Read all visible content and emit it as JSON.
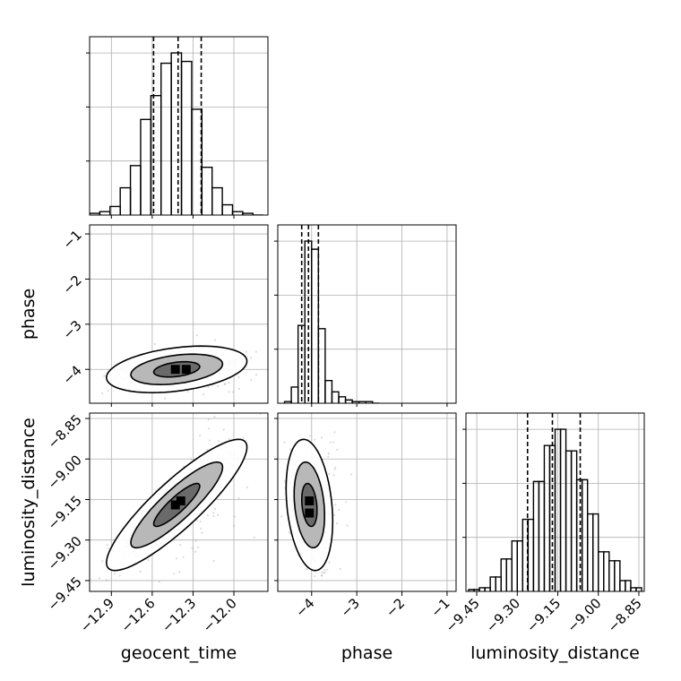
{
  "chart_data": {
    "type": "corner",
    "parameters": [
      "geocent_time",
      "phase",
      "luminosity_distance"
    ],
    "axis_labels": {
      "geocent_time": "geocent_time",
      "phase": "phase",
      "luminosity_distance": "luminosity_distance"
    },
    "tick_labels": {
      "geocent_time": [
        "−12.9",
        "−12.6",
        "−12.3",
        "−12.0"
      ],
      "phase": [
        "−4",
        "−3",
        "−2",
        "−1"
      ],
      "luminosity_distance": [
        "−9.45",
        "−9.30",
        "−9.15",
        "−9.00",
        "−8.85"
      ]
    },
    "ranges": {
      "geocent_time": [
        -13.06,
        -11.75
      ],
      "phase": [
        -4.75,
        -0.8
      ],
      "luminosity_distance": [
        -9.49,
        -8.83
      ]
    },
    "grid": true,
    "histograms": {
      "geocent_time": {
        "quantiles": [
          -12.59,
          -12.41,
          -12.24
        ],
        "bin_edges": [
          -13.06,
          -12.985,
          -12.91,
          -12.835,
          -12.76,
          -12.685,
          -12.61,
          -12.535,
          -12.46,
          -12.385,
          -12.31,
          -12.235,
          -12.16,
          -12.085,
          -12.01,
          -11.935,
          -11.86,
          -11.785
        ],
        "counts": [
          1,
          2,
          5,
          16,
          29,
          56,
          70,
          89,
          95,
          90,
          62,
          28,
          16,
          6,
          2,
          1,
          0
        ]
      },
      "phase": {
        "quantiles": [
          -4.22,
          -4.07,
          -3.85
        ],
        "bin_edges": [
          -4.6,
          -4.45,
          -4.3,
          -4.15,
          -4.0,
          -3.85,
          -3.7,
          -3.55,
          -3.4,
          -3.25,
          -3.1,
          -2.95,
          -2.8,
          -2.65,
          -2.5
        ],
        "counts": [
          1,
          10,
          48,
          100,
          95,
          46,
          14,
          7,
          4,
          2,
          1,
          1,
          1,
          0
        ]
      },
      "luminosity_distance": {
        "quantiles": [
          -9.262,
          -9.17,
          -9.067
        ],
        "bin_edges": [
          -9.48,
          -9.46,
          -9.44,
          -9.42,
          -9.4,
          -9.38,
          -9.36,
          -9.34,
          -9.32,
          -9.3,
          -9.28,
          -9.26,
          -9.24,
          -9.22,
          -9.2,
          -9.18,
          -9.16,
          -9.14,
          -9.12,
          -9.1,
          -9.08,
          -9.06,
          -9.04,
          -9.02,
          -9.0,
          -8.98,
          -8.96,
          -8.94,
          -8.92,
          -8.9,
          -8.88,
          -8.86,
          -8.84
        ],
        "counts": [
          1,
          1,
          2,
          2,
          8,
          8,
          18,
          18,
          28,
          28,
          40,
          40,
          61,
          61,
          81,
          81,
          90,
          90,
          78,
          78,
          62,
          62,
          43,
          43,
          22,
          22,
          17,
          17,
          6,
          6,
          2,
          2
        ]
      }
    },
    "scatter_2d": [
      {
        "x_param": "geocent_time",
        "y_param": "phase",
        "center": [
          -12.42,
          -4.0
        ],
        "std": [
          0.17,
          0.17
        ],
        "correlation": 0.35,
        "peak_cells": [
          [
            -12.43,
            -4.0
          ],
          [
            -12.35,
            -4.0
          ]
        ],
        "contour_levels": [
          0.39,
          0.86,
          0.99
        ]
      },
      {
        "x_param": "geocent_time",
        "y_param": "luminosity_distance",
        "center": [
          -12.42,
          -9.17
        ],
        "std": [
          0.17,
          0.08
        ],
        "correlation": 0.88,
        "peak_cells": [
          [
            -12.39,
            -9.155
          ],
          [
            -12.43,
            -9.17
          ]
        ],
        "contour_levels": [
          0.39,
          0.86,
          0.99
        ]
      },
      {
        "x_param": "phase",
        "y_param": "luminosity_distance",
        "center": [
          -4.05,
          -9.17
        ],
        "std": [
          0.17,
          0.08
        ],
        "correlation": -0.25,
        "peak_cells": [
          [
            -4.05,
            -9.155
          ],
          [
            -4.05,
            -9.2
          ]
        ],
        "contour_levels": [
          0.39,
          0.86,
          0.99
        ]
      }
    ]
  }
}
